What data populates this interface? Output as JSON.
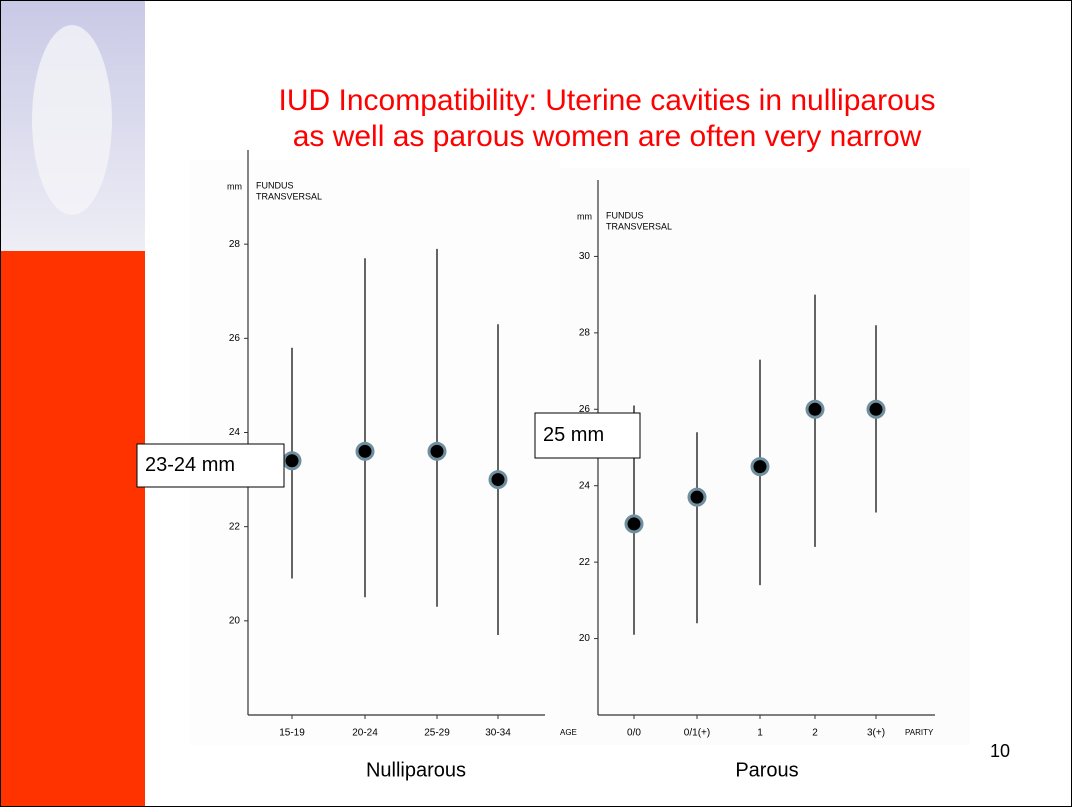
{
  "slide": {
    "title": [
      "IUD Incompatibility: Uterine cavities in nulliparous",
      "as well as parous women are often very narrow"
    ],
    "page_number": "10"
  },
  "chart_data": [
    {
      "type": "range",
      "caption": "Nulliparous",
      "y_unit": "mm",
      "y_label": [
        "FUNDUS",
        "TRANSVERSAL"
      ],
      "x_label": "AGE",
      "categories": [
        "15-19",
        "20-24",
        "25-29",
        "30-34"
      ],
      "values": [
        23.4,
        23.6,
        23.6,
        23.0
      ],
      "low": [
        20.9,
        20.5,
        20.3,
        19.7
      ],
      "high": [
        25.8,
        27.7,
        27.9,
        26.3
      ],
      "color": "#000000",
      "ylim": [
        18,
        30
      ],
      "yticks": [
        20,
        22,
        24,
        26,
        28
      ],
      "annotation": "23-24 mm"
    },
    {
      "type": "range",
      "caption": "Parous",
      "y_unit": "mm",
      "y_label": [
        "FUNDUS",
        "TRANSVERSAL"
      ],
      "x_label": "PARITY",
      "categories": [
        "0/0",
        "0/1(+)",
        "1",
        "2",
        "3(+)"
      ],
      "values": [
        23.0,
        23.7,
        24.5,
        26.0,
        26.0
      ],
      "low": [
        20.1,
        20.4,
        21.4,
        22.4,
        23.3
      ],
      "high": [
        26.1,
        25.4,
        27.3,
        29.0,
        28.2
      ],
      "color": "#000000",
      "ylim": [
        18,
        32
      ],
      "yticks": [
        20,
        22,
        24,
        26,
        28,
        30
      ],
      "annotation": "25 mm"
    }
  ]
}
